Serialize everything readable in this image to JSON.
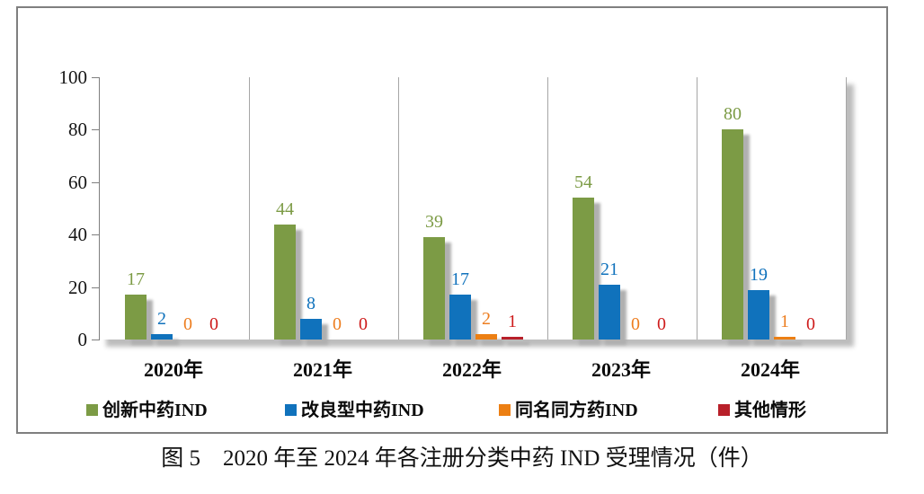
{
  "figure": {
    "caption": "图 5　2020 年至 2024 年各注册分类中药 IND 受理情况（件）"
  },
  "chart_data": {
    "type": "bar",
    "title": "",
    "xlabel": "",
    "ylabel": "",
    "categories": [
      "2020年",
      "2021年",
      "2022年",
      "2023年",
      "2024年"
    ],
    "series": [
      {
        "name": "创新中药IND",
        "color": "#7C9B45",
        "label_color": "#7C9B45",
        "values": [
          17,
          44,
          39,
          54,
          80
        ]
      },
      {
        "name": "改良型中药IND",
        "color": "#1072BC",
        "label_color": "#1072BC",
        "values": [
          2,
          8,
          17,
          21,
          19
        ]
      },
      {
        "name": "同名同方药IND",
        "color": "#EC7F13",
        "label_color": "#ED7D1F",
        "values": [
          0,
          0,
          2,
          0,
          1
        ]
      },
      {
        "name": "其他情形",
        "color": "#B8202A",
        "label_color": "#CE1B1B",
        "values": [
          0,
          0,
          1,
          0,
          0
        ]
      }
    ],
    "ylim": [
      0,
      100
    ],
    "yticks": [
      0,
      20,
      40,
      60,
      80,
      100
    ],
    "grid": "vertical-category-separators",
    "legend_position": "bottom",
    "bar_labels": true
  }
}
